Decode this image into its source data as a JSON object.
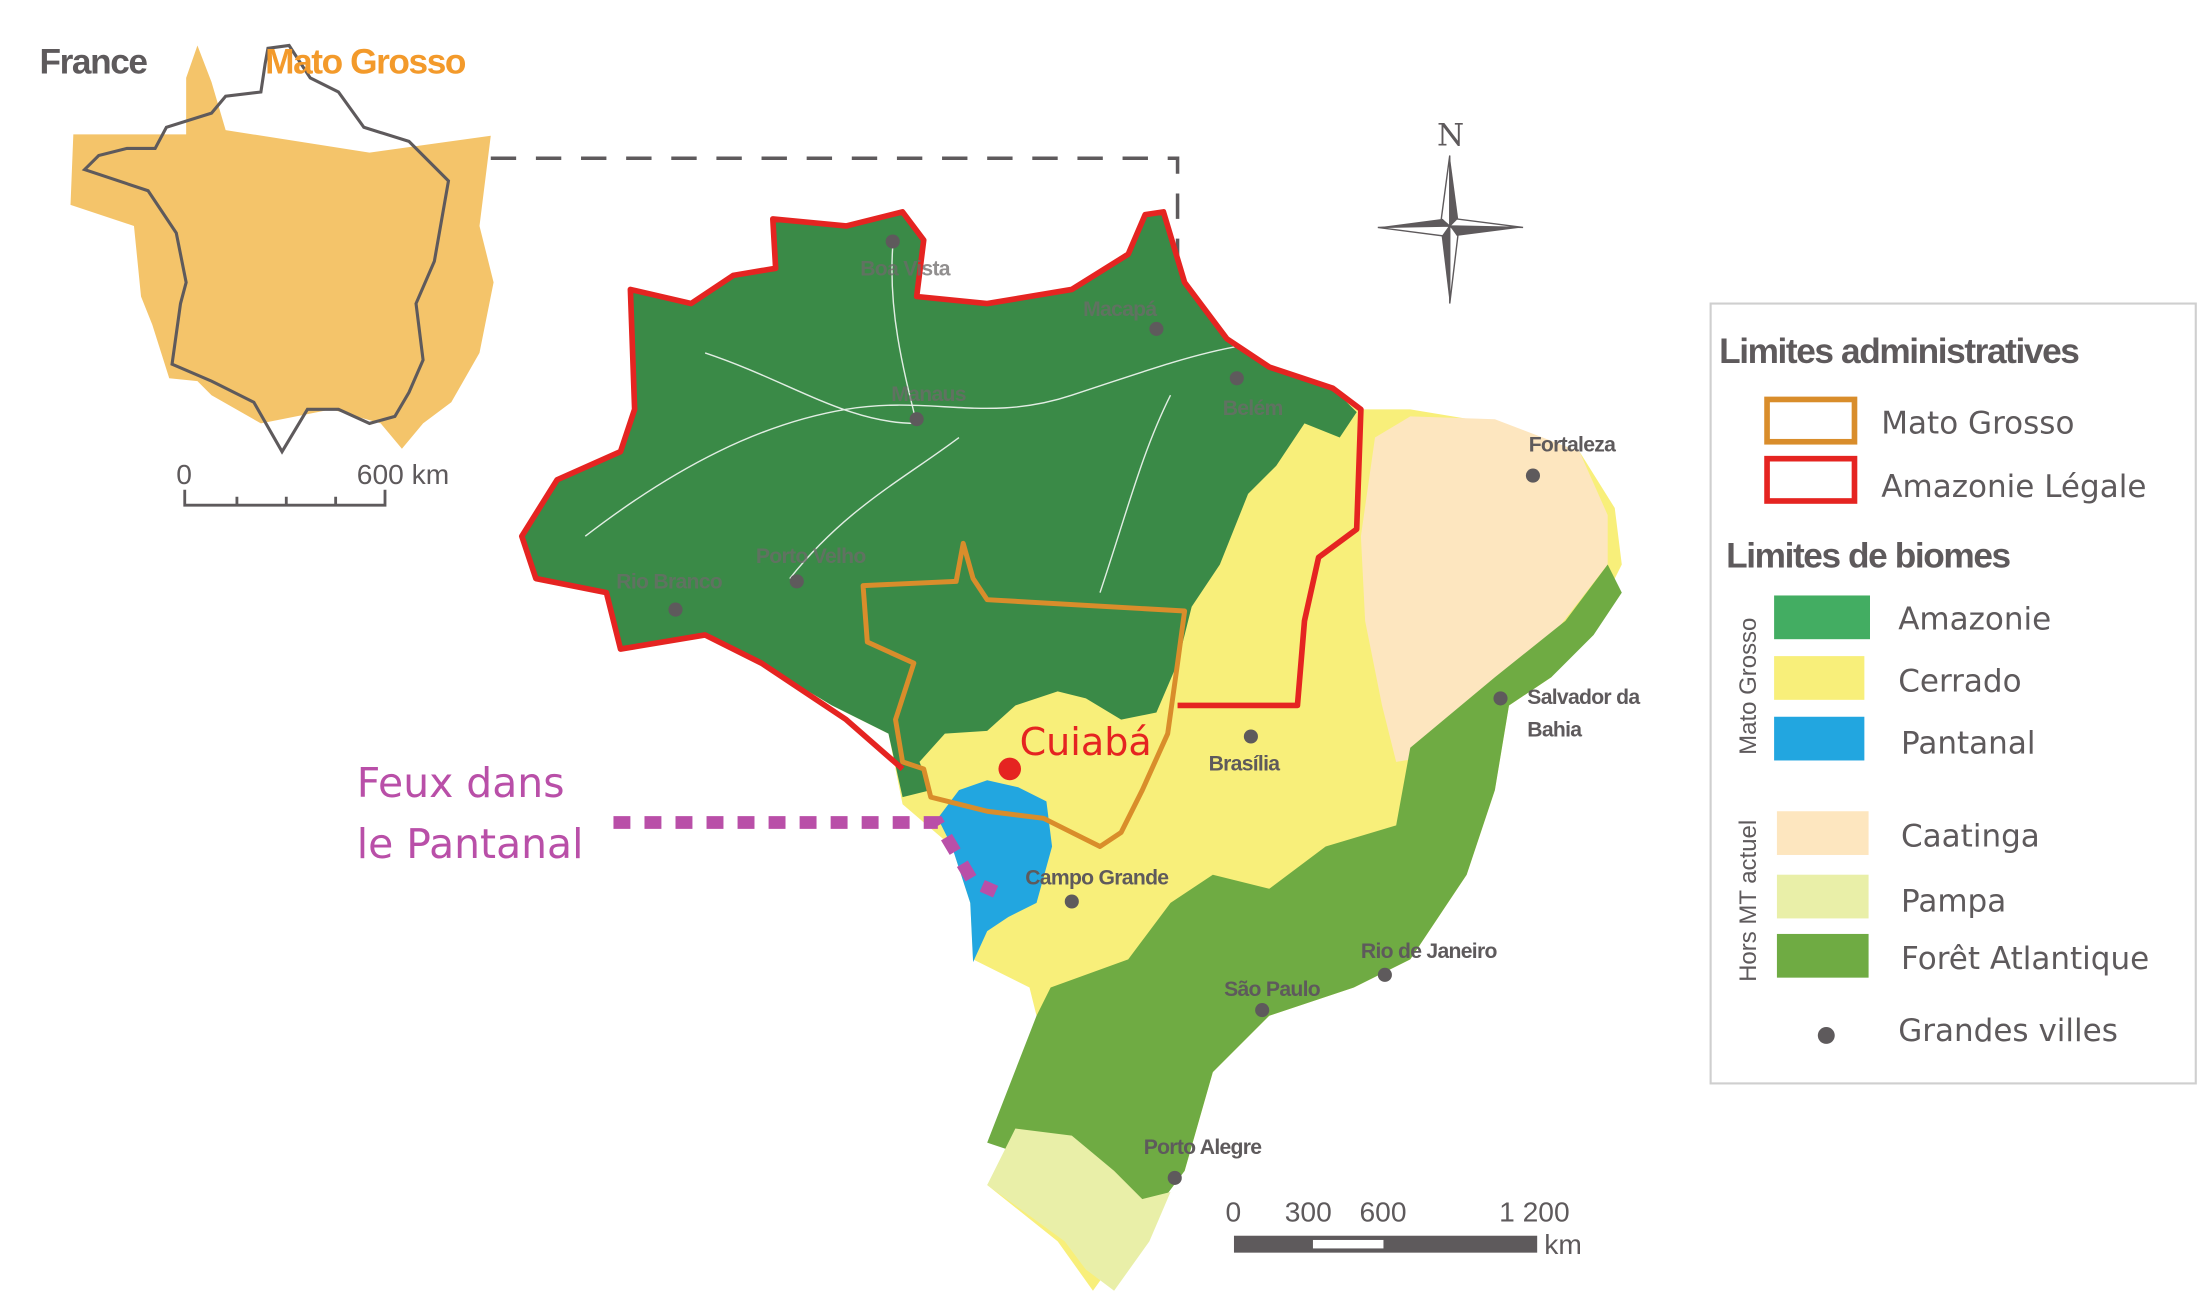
{
  "inset": {
    "france_label": "France",
    "mato_grosso_label": "Mato Grosso",
    "scale": {
      "start": "0",
      "end": "600 km"
    }
  },
  "north_label": "N",
  "cities": {
    "boa_vista": "Boa Vista",
    "macapa": "Macapá",
    "manaus": "Manaus",
    "belem": "Belém",
    "porto_velho": "Porto Velho",
    "rio_branco": "Rio Branco",
    "fortaleza": "Fortaleza",
    "salvador_line1": "Salvador da",
    "salvador_line2": "Bahia",
    "brasilia": "Brasília",
    "campo_grande": "Campo Grande",
    "rio_de_janeiro": "Rio de Janeiro",
    "sao_paulo": "São Paulo",
    "porto_alegre": "Porto Alegre",
    "cuiaba": "Cuiabá"
  },
  "annotation": {
    "line1": "Feux dans",
    "line2": "le Pantanal"
  },
  "scale_bar": {
    "t0": "0",
    "t1": "300",
    "t2": "600",
    "t3": "1 200",
    "unit": "km"
  },
  "legend": {
    "admin_title": "Limites administratives",
    "admin_items": [
      {
        "label": "Mato Grosso",
        "color": "#d98d2b"
      },
      {
        "label": "Amazonie Légale",
        "color": "#e52421"
      }
    ],
    "biome_title": "Limites de biomes",
    "group_mt": "Mato Grosso",
    "group_hors": "Hors MT actuel",
    "biomes": [
      {
        "label": "Amazonie",
        "color": "#43ad62"
      },
      {
        "label": "Cerrado",
        "color": "#f8ef7a"
      },
      {
        "label": "Pantanal",
        "color": "#22a6e0"
      },
      {
        "label": "Caatinga",
        "color": "#fde6bf"
      },
      {
        "label": "Pampa",
        "color": "#e9efa8"
      },
      {
        "label": "Forêt Atlantique",
        "color": "#6fab43"
      }
    ],
    "cities_label": "Grandes villes"
  },
  "colors": {
    "amazonie_map": "#3a8a47",
    "cerrado": "#f8ef7a",
    "pantanal": "#22a6e0",
    "caatinga": "#fde6bf",
    "pampa": "#e9efa8",
    "foret_atlantique": "#6fab43",
    "amazonie_legale": "#e52421",
    "mato_grosso": "#d98d2b",
    "inset_fill": "#f4c46a",
    "annotation": "#b94fa8",
    "city_dot": "#5e5a5c"
  }
}
